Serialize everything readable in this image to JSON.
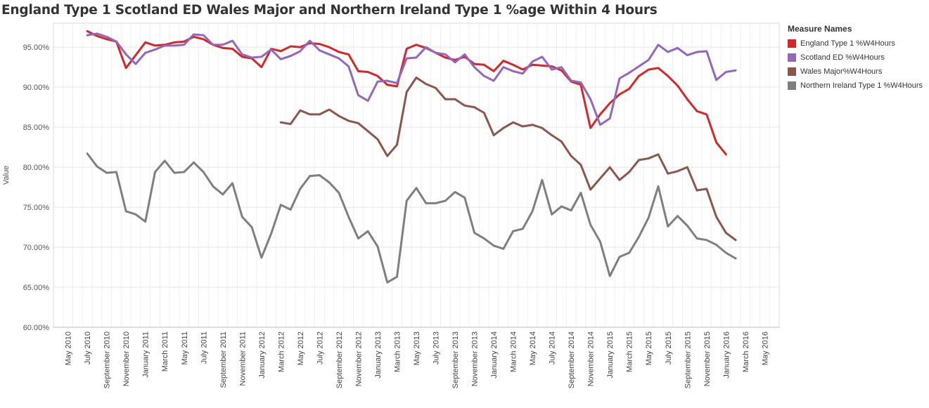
{
  "chart_data": {
    "type": "line",
    "title": "England Type 1 Scotland ED Wales Major and Northern Ireland Type 1 %age Within 4 Hours",
    "ylabel": "Value",
    "xlabel": "",
    "ylim": [
      60,
      98
    ],
    "yticks": [
      "60.00%",
      "65.00%",
      "70.00%",
      "75.00%",
      "80.00%",
      "85.00%",
      "90.00%",
      "95.00%"
    ],
    "ytick_values": [
      60,
      65,
      70,
      75,
      80,
      85,
      90,
      95
    ],
    "x_start": "2010-04",
    "x_months": 75,
    "xticks": [
      "May 2010",
      "July 2010",
      "September 2010",
      "November 2010",
      "January 2011",
      "March 2011",
      "May 2011",
      "July 2011",
      "September 2011",
      "November 2011",
      "January 2012",
      "March 2012",
      "May 2012",
      "July 2012",
      "September 2012",
      "November 2012",
      "January 2013",
      "March 2013",
      "May 2013",
      "July 2013",
      "September 2013",
      "November 2013",
      "January 2014",
      "March 2014",
      "May 2014",
      "July 2014",
      "September 2014",
      "November 2014",
      "January 2015",
      "March 2015",
      "May 2015",
      "July 2015",
      "September 2015",
      "November 2015",
      "January 2016",
      "March 2016",
      "May 2016"
    ],
    "xtick_months": [
      "2010-05",
      "2010-07",
      "2010-09",
      "2010-11",
      "2011-01",
      "2011-03",
      "2011-05",
      "2011-07",
      "2011-09",
      "2011-11",
      "2012-01",
      "2012-03",
      "2012-05",
      "2012-07",
      "2012-09",
      "2012-11",
      "2013-01",
      "2013-03",
      "2013-05",
      "2013-07",
      "2013-09",
      "2013-11",
      "2014-01",
      "2014-03",
      "2014-05",
      "2014-07",
      "2014-09",
      "2014-11",
      "2015-01",
      "2015-03",
      "2015-05",
      "2015-07",
      "2015-09",
      "2015-11",
      "2016-01",
      "2016-03",
      "2016-05"
    ],
    "grid": true,
    "legend_title": "Measure Names",
    "legend_position": "right",
    "series": [
      {
        "name": "England Type 1 %W4Hours",
        "color": "#d62728",
        "start": "2010-07",
        "values": [
          97.0,
          96.4,
          96.0,
          95.7,
          92.4,
          94.0,
          95.6,
          95.2,
          95.3,
          95.6,
          95.7,
          96.3,
          96.0,
          95.3,
          94.9,
          94.8,
          93.8,
          93.6,
          92.5,
          94.8,
          94.5,
          95.1,
          95.0,
          95.5,
          95.4,
          95.0,
          94.4,
          94.1,
          92.0,
          91.9,
          91.4,
          90.3,
          90.1,
          94.8,
          95.3,
          94.9,
          94.3,
          93.7,
          93.4,
          93.8,
          92.9,
          92.8,
          92.0,
          93.3,
          92.8,
          92.2,
          92.8,
          92.7,
          92.6,
          92.1,
          90.7,
          90.3,
          84.9,
          86.6,
          88.0,
          89.1,
          89.8,
          91.4,
          92.2,
          92.4,
          91.4,
          90.2,
          88.5,
          87.0,
          86.6,
          83.1,
          81.6
        ]
      },
      {
        "name": "Scotland ED %W4Hours",
        "color": "#9467bd",
        "start": "2010-07",
        "values": [
          96.5,
          96.7,
          96.3,
          95.7,
          94.1,
          92.9,
          94.3,
          94.7,
          95.2,
          95.2,
          95.3,
          96.6,
          96.5,
          95.3,
          95.3,
          95.8,
          94.1,
          93.7,
          93.8,
          94.7,
          93.5,
          93.9,
          94.5,
          95.8,
          94.6,
          94.1,
          93.6,
          92.6,
          89.0,
          88.3,
          90.7,
          90.8,
          90.5,
          93.6,
          93.7,
          95.0,
          94.3,
          94.1,
          93.1,
          94.1,
          92.5,
          91.4,
          90.8,
          92.5,
          92.0,
          91.7,
          93.2,
          93.8,
          92.2,
          92.5,
          90.8,
          90.6,
          88.5,
          85.3,
          86.1,
          91.1,
          91.8,
          92.6,
          93.4,
          95.3,
          94.4,
          94.9,
          94.0,
          94.4,
          94.5,
          90.9,
          91.9,
          92.1
        ]
      },
      {
        "name": "Wales Major%W4Hours",
        "color": "#8c564b",
        "start": "2012-03",
        "values": [
          85.6,
          85.4,
          87.1,
          86.6,
          86.6,
          87.2,
          86.4,
          85.8,
          85.5,
          84.5,
          83.5,
          81.4,
          82.8,
          89.4,
          91.2,
          90.4,
          89.9,
          88.5,
          88.5,
          87.7,
          87.5,
          86.8,
          84.0,
          84.9,
          85.6,
          85.1,
          85.3,
          84.9,
          84.0,
          83.2,
          81.4,
          80.3,
          77.2,
          78.6,
          80.0,
          78.4,
          79.4,
          80.9,
          81.1,
          81.6,
          79.2,
          79.5,
          80.0,
          77.1,
          77.3,
          73.8,
          71.8,
          70.9
        ]
      },
      {
        "name": "Northern Ireland Type 1 %W4Hours",
        "color": "#7f7f7f",
        "start": "2010-07",
        "values": [
          81.7,
          80.1,
          79.3,
          79.4,
          74.5,
          74.1,
          73.2,
          79.4,
          80.8,
          79.3,
          79.4,
          80.6,
          79.4,
          77.6,
          76.6,
          78.0,
          73.8,
          72.5,
          68.7,
          71.7,
          75.3,
          74.7,
          77.3,
          78.9,
          79.0,
          78.1,
          76.8,
          73.8,
          71.1,
          72.0,
          70.1,
          65.6,
          66.3,
          75.8,
          77.4,
          75.5,
          75.5,
          75.8,
          76.9,
          76.2,
          71.8,
          71.1,
          70.2,
          69.8,
          72.0,
          72.3,
          74.5,
          78.4,
          74.1,
          75.1,
          74.6,
          76.8,
          72.8,
          70.7,
          66.4,
          68.8,
          69.3,
          71.3,
          73.7,
          77.6,
          72.6,
          73.9,
          72.7,
          71.1,
          70.9,
          70.3,
          69.3,
          68.6
        ]
      }
    ]
  }
}
